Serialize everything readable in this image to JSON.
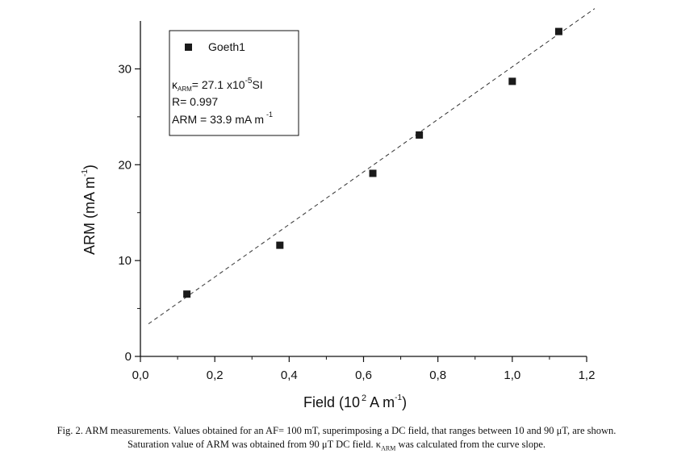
{
  "chart_data": {
    "type": "scatter",
    "series": [
      {
        "name": "Goeth1",
        "x": [
          0.125,
          0.375,
          0.625,
          0.75,
          1.0,
          1.125
        ],
        "y": [
          6.5,
          11.6,
          19.1,
          23.1,
          28.7,
          33.9
        ]
      }
    ],
    "fit_line": {
      "x": [
        0.0,
        1.2
      ],
      "y": [
        2.8,
        35.7
      ],
      "style": "dashed"
    },
    "xlim": [
      0.0,
      1.2
    ],
    "ylim": [
      0,
      35
    ],
    "xticks": [
      "0,0",
      "0,2",
      "0,4",
      "0,6",
      "0,8",
      "1,0",
      "1,2"
    ],
    "yticks": [
      "0",
      "10",
      "20",
      "30"
    ],
    "xlabel": {
      "main": "Field (10",
      "exp": "2",
      "unit": " A m",
      "unit_exp": "-1",
      "close": ")"
    },
    "ylabel": {
      "main": "ARM (mA m",
      "exp": "-1",
      "close": ")"
    },
    "annotations": {
      "kappa_symbol": "κ",
      "kappa_sub": "ARM",
      "kappa_value": "= 27.1 x10",
      "kappa_exp": "-5",
      "kappa_unit": "SI",
      "r_value": "R= 0.997",
      "arm_value": "ARM = 33.9 mA m",
      "arm_exp": "-1"
    },
    "legend_position": "top-left",
    "grid": false,
    "colors": {
      "marker": "#1a1a1a",
      "line": "#333333"
    }
  },
  "caption": {
    "line1": "Fig. 2. ARM measurements. Values obtained for an AF= 100 mT, superimposing a DC field, that ranges between 10 and 90 μT, are shown.",
    "line2_a": "Saturation value of ARM was obtained from 90 μT DC field. κ",
    "line2_sub": "ARM",
    "line2_b": " was calculated from the curve slope."
  }
}
